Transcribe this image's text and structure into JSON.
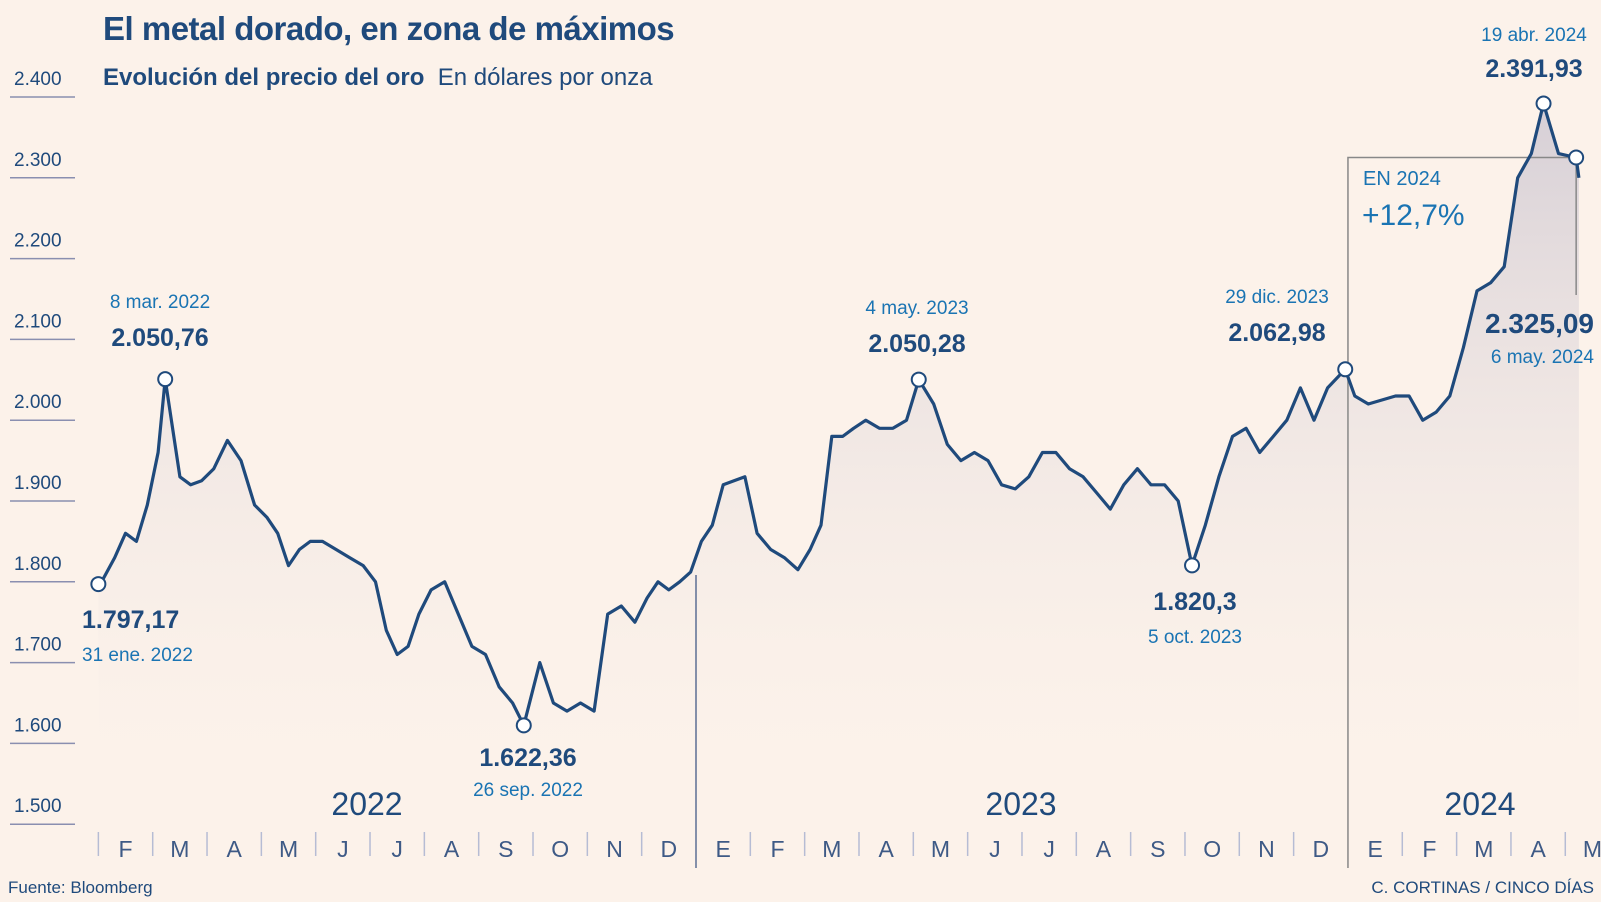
{
  "title": "El metal dorado, en zona de máximos",
  "subtitle": {
    "bold": "Evolución del precio del oro",
    "unit": "En dólares por onza"
  },
  "footer": {
    "source": "Fuente: Bloomberg",
    "credit": "C. CORTINAS / CINCO DÍAS"
  },
  "colors": {
    "line": "#1f4a7c",
    "accent": "#1a74b3",
    "background": "#fcf2ea",
    "box": "#888888"
  },
  "chart_data": {
    "type": "line",
    "title": "El metal dorado, en zona de máximos",
    "ylabel": "En dólares por onza",
    "ylim": [
      1500,
      2400
    ],
    "yticks": [
      2400,
      2300,
      2200,
      2100,
      2000,
      1900,
      1800,
      1700,
      1600,
      1500
    ],
    "ytick_labels": [
      "2.400",
      "2.300",
      "2.200",
      "2.100",
      "2.000",
      "1.900",
      "1.800",
      "1.700",
      "1.600",
      "1.500"
    ],
    "years": [
      {
        "label": "2022",
        "start_month": 0
      },
      {
        "label": "2023",
        "start_month": 12
      },
      {
        "label": "2024",
        "start_month": 24
      }
    ],
    "month_labels": [
      "F",
      "M",
      "A",
      "M",
      "J",
      "J",
      "A",
      "S",
      "O",
      "N",
      "D",
      "E",
      "F",
      "M",
      "A",
      "M",
      "J",
      "J",
      "A",
      "S",
      "O",
      "N",
      "D",
      "E",
      "F",
      "M",
      "A",
      "M"
    ],
    "x_unit": "months since 1 Jan 2022",
    "weekly_values_by_month": [
      [
        1805,
        1830,
        1860,
        1850,
        1895
      ],
      [
        1960,
        2050.76,
        1930,
        1920,
        1925
      ],
      [
        1940,
        1975,
        1950,
        1895
      ],
      [
        1880,
        1860,
        1820,
        1840,
        1850
      ],
      [
        1850,
        1840,
        1830,
        1820
      ],
      [
        1800,
        1740,
        1710,
        1720,
        1760
      ],
      [
        1790,
        1800,
        1760,
        1720
      ],
      [
        1710,
        1670,
        1650,
        1622.36
      ],
      [
        1700,
        1650,
        1640,
        1650
      ],
      [
        1640,
        1760,
        1770,
        1750
      ],
      [
        1780,
        1800,
        1790,
        1800,
        1812
      ],
      [
        1850,
        1870,
        1920,
        1925,
        1930
      ],
      [
        1860,
        1840,
        1830,
        1815
      ],
      [
        1840,
        1870,
        1980,
        1980,
        1990
      ],
      [
        2000,
        1990,
        1990,
        2000
      ],
      [
        2050.28,
        2020,
        1970,
        1950
      ],
      [
        1960,
        1950,
        1920,
        1915
      ],
      [
        1930,
        1960,
        1960,
        1940
      ],
      [
        1930,
        1910,
        1890,
        1920
      ],
      [
        1940,
        1920,
        1920,
        1900
      ],
      [
        1820.3,
        1870,
        1930,
        1980
      ],
      [
        1990,
        1960,
        1980,
        2000
      ],
      [
        2040,
        2000,
        2040,
        2062.98
      ],
      [
        2030,
        2020,
        2025,
        2030
      ],
      [
        2030,
        2000,
        2010,
        2030
      ],
      [
        2090,
        2160,
        2170,
        2190
      ],
      [
        2300,
        2330,
        2391.93,
        2330
      ],
      [
        2300,
        2325.09
      ]
    ],
    "start_point": {
      "month": 1.0,
      "value": 1797.17
    },
    "annotations": [
      {
        "date": "31 ene. 2022",
        "value": "1.797,17",
        "month": 1.0,
        "y": 1797.17
      },
      {
        "date": "8 mar. 2022",
        "value": "2.050,76",
        "month": 2.23,
        "y": 2050.76
      },
      {
        "date": "26 sep. 2022",
        "value": "1.622,36",
        "month": 8.83,
        "y": 1622.36
      },
      {
        "date": "4 may. 2023",
        "value": "2.050,28",
        "month": 16.1,
        "y": 2050.28
      },
      {
        "date": "5 oct. 2023",
        "value": "1.820,3",
        "month": 21.13,
        "y": 1820.3
      },
      {
        "date": "29 dic. 2023",
        "value": "2.062,98",
        "month": 23.95,
        "y": 2062.98
      },
      {
        "date": "19 abr. 2024",
        "value": "2.391,93",
        "month": 27.6,
        "y": 2391.93
      },
      {
        "date": "6 may. 2024",
        "value": "2.325,09",
        "month": 28.2,
        "y": 2325.09
      }
    ],
    "box": {
      "label": "EN 2024",
      "value": "+12,7%"
    }
  }
}
